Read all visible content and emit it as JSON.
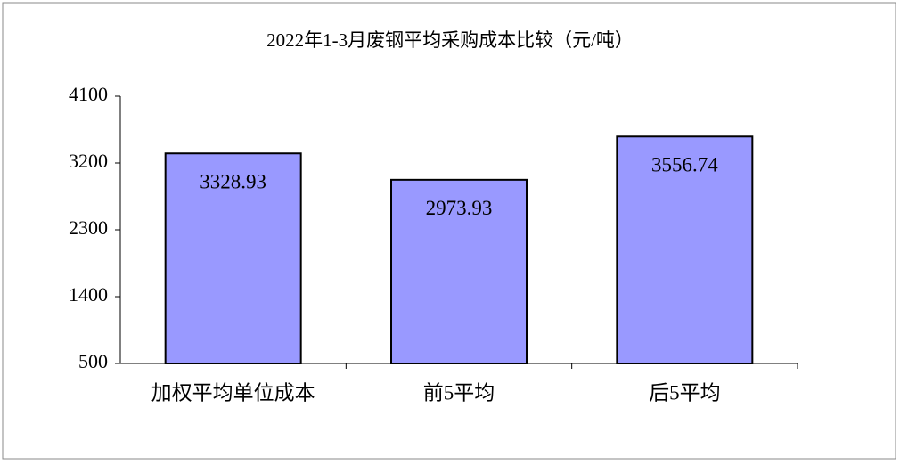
{
  "chart_data": {
    "type": "bar",
    "title": "2022年1-3月废钢平均采购成本比较（元/吨）",
    "categories": [
      "加权平均单位成本",
      "前5平均",
      "后5平均"
    ],
    "values": [
      3328.93,
      2973.93,
      3556.74
    ],
    "color": "#9999ff",
    "ylim": [
      500,
      4100
    ],
    "yticks": [
      500,
      1400,
      2300,
      3200,
      4100
    ],
    "grid": false
  }
}
